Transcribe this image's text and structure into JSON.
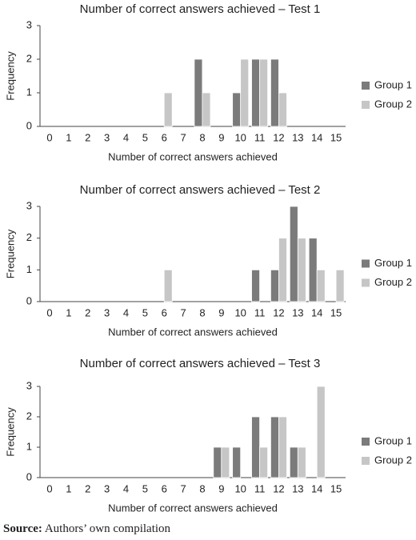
{
  "chart_data": [
    {
      "type": "bar",
      "title": "Number of correct answers achieved – Test 1",
      "categories": [
        "0",
        "1",
        "2",
        "3",
        "4",
        "5",
        "6",
        "7",
        "8",
        "9",
        "10",
        "11",
        "12",
        "13",
        "14",
        "15"
      ],
      "series": [
        {
          "name": "Group 1",
          "color": "#7b7b7b",
          "values": [
            0,
            0,
            0,
            0,
            0,
            0,
            0,
            0,
            2,
            0,
            1,
            2,
            2,
            0,
            0,
            0
          ]
        },
        {
          "name": "Group 2",
          "color": "#c6c6c6",
          "values": [
            0,
            0,
            0,
            0,
            0,
            0,
            1,
            0,
            1,
            0,
            2,
            2,
            1,
            0,
            0,
            0
          ]
        }
      ],
      "xlabel": "Number of correct answers achieved",
      "ylabel": "Frequency",
      "ylim": [
        0,
        3
      ],
      "yticks": [
        0,
        1,
        2,
        3
      ],
      "legend": "right"
    },
    {
      "type": "bar",
      "title": "Number of correct answers achieved – Test 2",
      "categories": [
        "0",
        "1",
        "2",
        "3",
        "4",
        "5",
        "6",
        "7",
        "8",
        "9",
        "10",
        "11",
        "12",
        "13",
        "14",
        "15"
      ],
      "series": [
        {
          "name": "Group 1",
          "color": "#7b7b7b",
          "values": [
            0,
            0,
            0,
            0,
            0,
            0,
            0,
            0,
            0,
            0,
            0,
            1,
            1,
            3,
            2,
            0
          ]
        },
        {
          "name": "Group 2",
          "color": "#c6c6c6",
          "values": [
            0,
            0,
            0,
            0,
            0,
            0,
            1,
            0,
            0,
            0,
            0,
            0,
            2,
            2,
            1,
            1
          ]
        }
      ],
      "xlabel": "Number of correct answers achieved",
      "ylabel": "Frequency",
      "ylim": [
        0,
        3
      ],
      "yticks": [
        0,
        1,
        2,
        3
      ],
      "legend": "right"
    },
    {
      "type": "bar",
      "title": "Number of correct answers achieved – Test 3",
      "categories": [
        "0",
        "1",
        "2",
        "3",
        "4",
        "5",
        "6",
        "7",
        "8",
        "9",
        "10",
        "11",
        "12",
        "13",
        "14",
        "15"
      ],
      "series": [
        {
          "name": "Group 1",
          "color": "#7b7b7b",
          "values": [
            0,
            0,
            0,
            0,
            0,
            0,
            0,
            0,
            0,
            1,
            1,
            2,
            2,
            1,
            0,
            0
          ]
        },
        {
          "name": "Group 2",
          "color": "#c6c6c6",
          "values": [
            0,
            0,
            0,
            0,
            0,
            0,
            0,
            0,
            0,
            1,
            0,
            1,
            2,
            1,
            3,
            0
          ]
        }
      ],
      "xlabel": "Number of correct answers achieved",
      "ylabel": "Frequency",
      "ylim": [
        0,
        3
      ],
      "yticks": [
        0,
        1,
        2,
        3
      ],
      "legend": "right"
    }
  ],
  "source": {
    "label": "Source:",
    "text": "Authors’ own compilation"
  }
}
